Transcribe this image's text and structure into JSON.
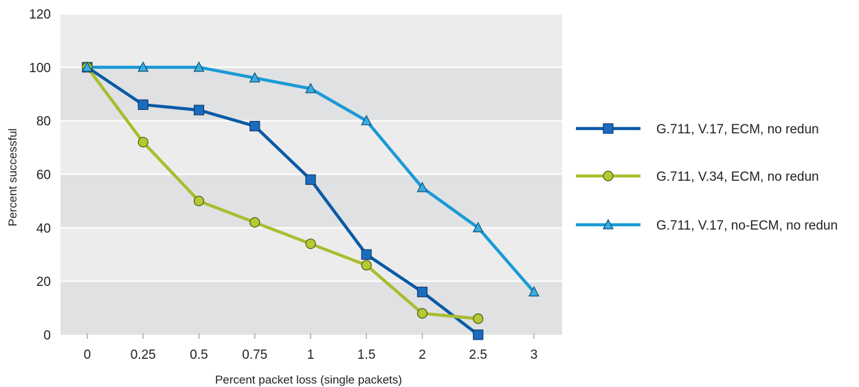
{
  "chart_data": {
    "type": "line",
    "title": "",
    "xlabel": "Percent packet loss (single packets)",
    "ylabel": "Percent successful",
    "categories": [
      "0",
      "0.25",
      "0.5",
      "0.75",
      "1",
      "1.5",
      "2",
      "2.5",
      "3"
    ],
    "ylim": [
      0,
      120
    ],
    "yticks": [
      0,
      20,
      40,
      60,
      80,
      100,
      120
    ],
    "grid": "alternating horizontal bands",
    "legend_position": "right",
    "series": [
      {
        "name": "G.711, V.17, ECM, no redun",
        "marker": "square",
        "color": "#0a5aa5",
        "marker_fill": "#1a6cc0",
        "values": [
          100,
          86,
          84,
          78,
          58,
          30,
          16,
          0,
          null
        ]
      },
      {
        "name": "G.711, V.34, ECM, no redun",
        "marker": "circle",
        "color": "#a9bd2e",
        "marker_fill": "#b7c832",
        "values": [
          100,
          72,
          50,
          42,
          34,
          26,
          8,
          6,
          null
        ]
      },
      {
        "name": "G.711, V.17, no-ECM, no redun",
        "marker": "triangle",
        "color": "#1a9ad6",
        "marker_fill": "#37aee3",
        "values": [
          100,
          100,
          100,
          96,
          92,
          80,
          55,
          40,
          16
        ]
      }
    ]
  }
}
